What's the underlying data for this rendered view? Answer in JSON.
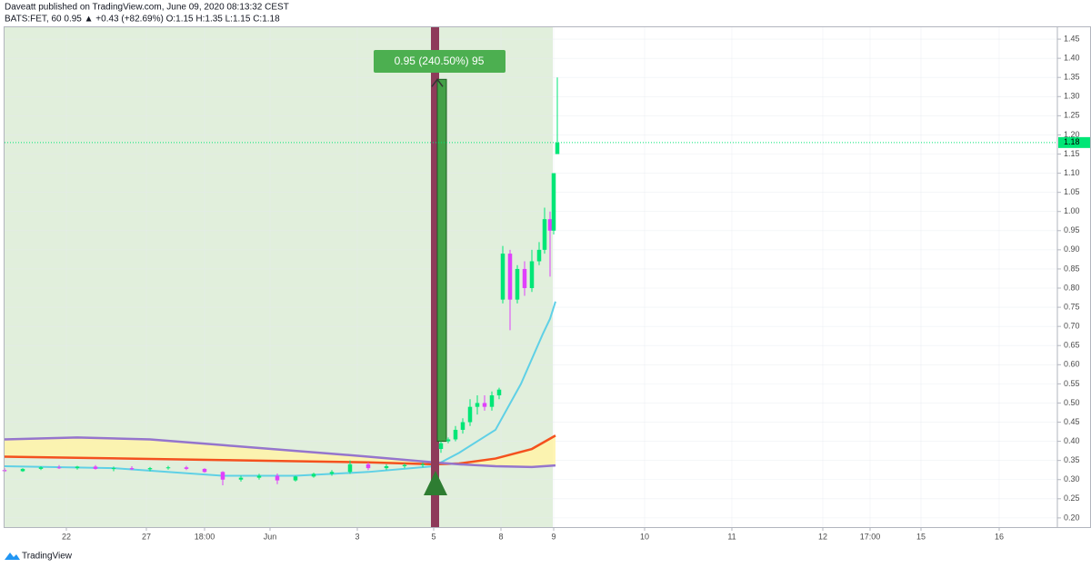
{
  "header": {
    "author_line": "Daveatt published on TradingView.com, June 09, 2020 08:13:32 CEST",
    "symbol_line": "BATS:FET, 60 0.95 ▲ +0.43 (+82.69%) O:1.15 H:1.35 L:1.15 C:1.18"
  },
  "footer": {
    "logo": "TradingView"
  },
  "chart_data": {
    "type": "candlestick",
    "x": [
      0,
      5,
      10,
      15,
      20,
      25,
      30,
      35,
      40,
      45,
      50,
      55,
      60,
      65,
      70,
      75,
      80,
      85,
      90,
      95,
      100,
      105,
      110,
      115,
      120,
      122,
      124,
      126,
      128,
      130,
      132,
      134,
      136,
      137,
      139,
      141,
      143,
      145,
      147,
      148.5,
      150,
      151,
      152
    ],
    "open": [
      0.325,
      0.322,
      0.328,
      0.332,
      0.33,
      0.334,
      0.328,
      0.33,
      0.327,
      0.33,
      0.332,
      0.328,
      0.32,
      0.3,
      0.305,
      0.31,
      0.298,
      0.308,
      0.315,
      0.32,
      0.34,
      0.33,
      0.335,
      0.338,
      0.38,
      0.4,
      0.405,
      0.43,
      0.45,
      0.49,
      0.5,
      0.49,
      0.52,
      0.77,
      0.89,
      0.77,
      0.85,
      0.8,
      0.87,
      0.9,
      0.98,
      0.95,
      1.15
    ],
    "high": [
      0.33,
      0.33,
      0.335,
      0.338,
      0.336,
      0.338,
      0.334,
      0.335,
      0.333,
      0.336,
      0.336,
      0.33,
      0.322,
      0.31,
      0.315,
      0.316,
      0.31,
      0.318,
      0.325,
      0.35,
      0.345,
      0.34,
      0.342,
      0.345,
      0.4,
      0.41,
      0.44,
      0.46,
      0.51,
      0.52,
      0.52,
      0.53,
      0.54,
      0.91,
      0.9,
      0.86,
      0.87,
      0.9,
      0.92,
      1.01,
      1.0,
      1.1,
      1.35
    ],
    "low": [
      0.32,
      0.32,
      0.325,
      0.328,
      0.326,
      0.326,
      0.322,
      0.325,
      0.322,
      0.326,
      0.325,
      0.318,
      0.285,
      0.295,
      0.3,
      0.288,
      0.295,
      0.305,
      0.31,
      0.315,
      0.325,
      0.325,
      0.33,
      0.332,
      0.37,
      0.395,
      0.4,
      0.42,
      0.44,
      0.47,
      0.48,
      0.48,
      0.51,
      0.76,
      0.69,
      0.76,
      0.78,
      0.79,
      0.86,
      0.89,
      0.83,
      0.94,
      1.15
    ],
    "close": [
      0.322,
      0.328,
      0.332,
      0.33,
      0.334,
      0.328,
      0.33,
      0.327,
      0.33,
      0.332,
      0.328,
      0.32,
      0.3,
      0.305,
      0.31,
      0.298,
      0.308,
      0.315,
      0.32,
      0.34,
      0.33,
      0.335,
      0.338,
      0.34,
      0.395,
      0.405,
      0.43,
      0.45,
      0.49,
      0.5,
      0.49,
      0.52,
      0.535,
      0.89,
      0.77,
      0.85,
      0.8,
      0.87,
      0.9,
      0.98,
      0.95,
      1.1,
      1.18
    ],
    "up_color": "#00e676",
    "down_color": "#e040fb",
    "lines": [
      {
        "color": "#5fd0e6",
        "x": [
          0,
          30,
          60,
          80,
          100,
          118,
          125,
          135,
          142,
          148,
          150,
          151.5
        ],
        "values": [
          0.335,
          0.33,
          0.31,
          0.31,
          0.32,
          0.335,
          0.37,
          0.43,
          0.55,
          0.68,
          0.72,
          0.765
        ]
      },
      {
        "color": "#f4511e",
        "x": [
          0,
          20,
          40,
          60,
          80,
          100,
          118,
          125,
          135,
          145,
          151.5
        ],
        "values": [
          0.36,
          0.357,
          0.354,
          0.351,
          0.348,
          0.345,
          0.34,
          0.342,
          0.355,
          0.38,
          0.415
        ]
      },
      {
        "color": "#9575cd",
        "x": [
          0,
          20,
          40,
          60,
          80,
          100,
          118,
          125,
          135,
          145,
          151.5
        ],
        "values": [
          0.405,
          0.41,
          0.405,
          0.39,
          0.375,
          0.36,
          0.345,
          0.34,
          0.335,
          0.333,
          0.337
        ]
      }
    ],
    "band_fill": "#fff3a8",
    "highlight": {
      "x": [
        0,
        150.75
      ],
      "color": "#e1efdc"
    },
    "position": {
      "x": 118.5,
      "entry": 0.4,
      "target": 1.345,
      "label": "0.95 (240.50%) 95"
    },
    "last_price": 1.18,
    "xlim": [
      0,
      289.5
    ],
    "xticks": [
      {
        "value": 17,
        "label": "22"
      },
      {
        "value": 39,
        "label": "27"
      },
      {
        "value": 55,
        "label": "18:00"
      },
      {
        "value": 73,
        "label": "Jun"
      },
      {
        "value": 97,
        "label": "3"
      },
      {
        "value": 118,
        "label": "5"
      },
      {
        "value": 136.5,
        "label": "8"
      },
      {
        "value": 151,
        "label": "9"
      },
      {
        "value": 176,
        "label": "10"
      },
      {
        "value": 200,
        "label": "11"
      },
      {
        "value": 225,
        "label": "12"
      },
      {
        "value": 238,
        "label": "17:00"
      },
      {
        "value": 252,
        "label": "15"
      },
      {
        "value": 273.5,
        "label": "16"
      }
    ],
    "ylim": [
      0.176,
      1.481
    ],
    "yticks": [
      {
        "value": 0.2,
        "label": "0.20"
      },
      {
        "value": 0.25,
        "label": "0.25"
      },
      {
        "value": 0.3,
        "label": "0.30"
      },
      {
        "value": 0.35,
        "label": "0.35"
      },
      {
        "value": 0.4,
        "label": "0.40"
      },
      {
        "value": 0.45,
        "label": "0.45"
      },
      {
        "value": 0.5,
        "label": "0.50"
      },
      {
        "value": 0.55,
        "label": "0.55"
      },
      {
        "value": 0.6,
        "label": "0.60"
      },
      {
        "value": 0.65,
        "label": "0.65"
      },
      {
        "value": 0.7,
        "label": "0.70"
      },
      {
        "value": 0.75,
        "label": "0.75"
      },
      {
        "value": 0.8,
        "label": "0.80"
      },
      {
        "value": 0.85,
        "label": "0.85"
      },
      {
        "value": 0.9,
        "label": "0.90"
      },
      {
        "value": 0.95,
        "label": "0.95"
      },
      {
        "value": 1.0,
        "label": "1.00"
      },
      {
        "value": 1.05,
        "label": "1.05"
      },
      {
        "value": 1.1,
        "label": "1.10"
      },
      {
        "value": 1.15,
        "label": "1.15"
      },
      {
        "value": 1.2,
        "label": "1.20"
      },
      {
        "value": 1.25,
        "label": "1.25"
      },
      {
        "value": 1.3,
        "label": "1.30"
      },
      {
        "value": 1.35,
        "label": "1.35"
      },
      {
        "value": 1.4,
        "label": "1.40"
      },
      {
        "value": 1.45,
        "label": "1.45"
      }
    ],
    "grid": true
  }
}
